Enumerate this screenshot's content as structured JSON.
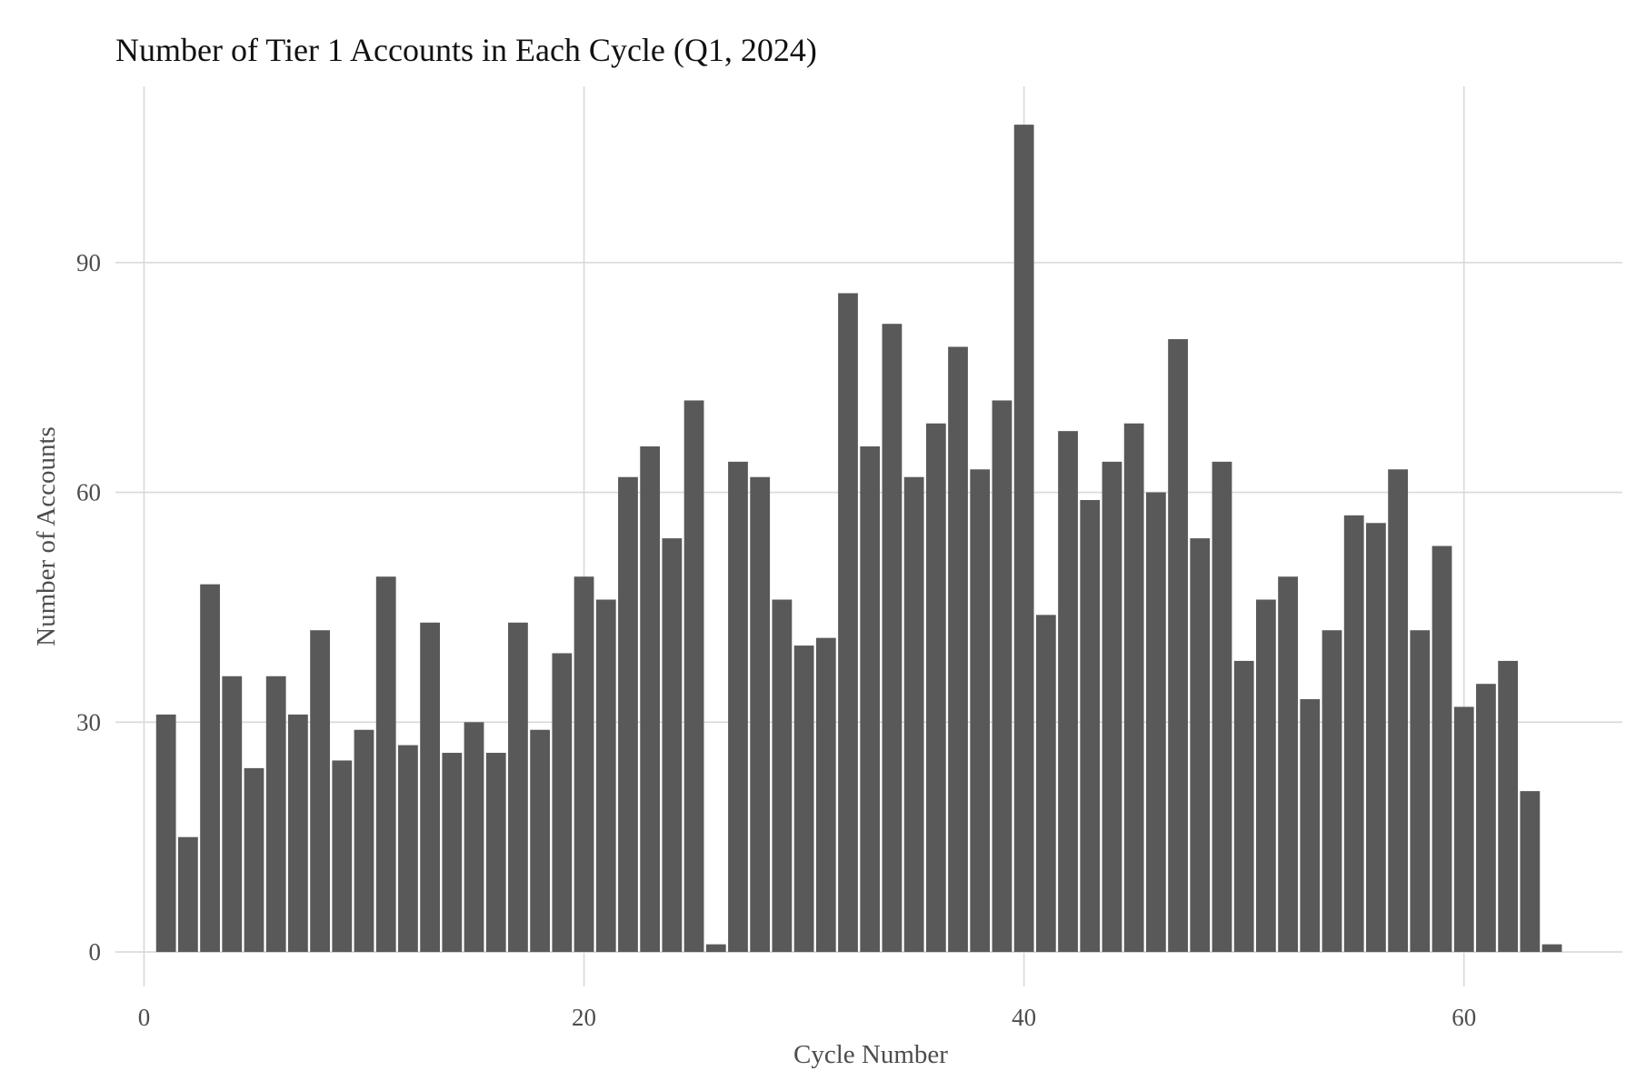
{
  "chart_data": {
    "type": "bar",
    "title": "Number of Tier 1 Accounts in Each Cycle (Q1, 2024)",
    "xlabel": "Cycle Number",
    "ylabel": "Number of Accounts",
    "x": [
      1,
      2,
      3,
      4,
      5,
      6,
      7,
      8,
      9,
      10,
      11,
      12,
      13,
      14,
      15,
      16,
      17,
      18,
      19,
      20,
      21,
      22,
      23,
      24,
      25,
      26,
      27,
      28,
      29,
      30,
      31,
      32,
      33,
      34,
      35,
      36,
      37,
      38,
      39,
      40,
      41,
      42,
      43,
      44,
      45,
      46,
      47,
      48,
      49,
      50,
      51,
      52,
      53,
      54,
      55,
      56,
      57,
      58,
      59,
      60,
      61,
      62,
      63,
      64
    ],
    "values": [
      31,
      15,
      48,
      36,
      24,
      36,
      31,
      42,
      25,
      29,
      49,
      27,
      43,
      26,
      30,
      26,
      43,
      29,
      39,
      49,
      46,
      62,
      66,
      54,
      72,
      1,
      64,
      62,
      46,
      40,
      41,
      86,
      66,
      82,
      62,
      69,
      79,
      63,
      72,
      108,
      44,
      68,
      59,
      64,
      69,
      60,
      80,
      54,
      64,
      38,
      46,
      49,
      33,
      42,
      57,
      56,
      63,
      42,
      53,
      32,
      35,
      38,
      21,
      1
    ],
    "xlim": [
      -1.3,
      67.2
    ],
    "ylim": [
      -4.5,
      113
    ],
    "x_ticks": [
      0,
      20,
      40,
      60
    ],
    "x_tick_labels": [
      "0",
      "20",
      "40",
      "60"
    ],
    "y_ticks": [
      0,
      30,
      60,
      90
    ],
    "y_tick_labels": [
      "0",
      "30",
      "60",
      "90"
    ],
    "bar_color": "#595959",
    "grid": true,
    "legend": "none"
  }
}
